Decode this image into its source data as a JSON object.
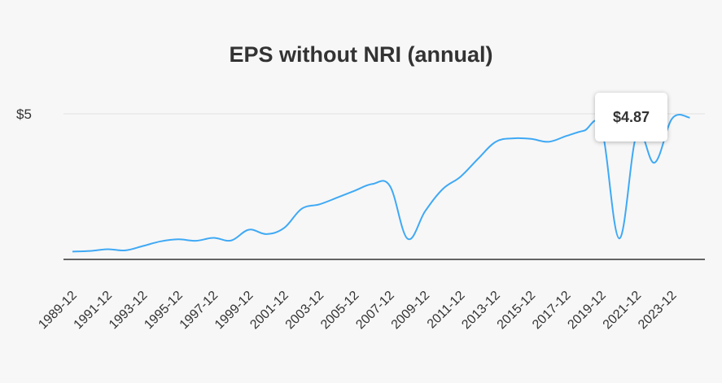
{
  "chart_data": {
    "type": "line",
    "title": "EPS without NRI (annual)",
    "xlabel": "",
    "ylabel": "",
    "y_tick_labels": [
      {
        "value": 5,
        "label": "$5"
      }
    ],
    "ylim": [
      0,
      5.1
    ],
    "x_tick_labels": [
      "1989-12",
      "1991-12",
      "1993-12",
      "1995-12",
      "1997-12",
      "1999-12",
      "2001-12",
      "2003-12",
      "2005-12",
      "2007-12",
      "2009-12",
      "2011-12",
      "2013-12",
      "2015-12",
      "2017-12",
      "2019-12",
      "2021-12",
      "2023-12"
    ],
    "grid": true,
    "legend": "none",
    "line_color": "#3fa9f5",
    "series": [
      {
        "x": [
          "1989-12",
          "1990-12",
          "1991-12",
          "1992-12",
          "1993-12",
          "1994-12",
          "1995-12",
          "1996-12",
          "1997-12",
          "1998-12",
          "1999-12",
          "2000-12",
          "2001-12",
          "2002-12",
          "2003-12",
          "2004-12",
          "2005-12",
          "2006-12",
          "2007-12",
          "2008-12",
          "2009-12",
          "2010-12",
          "2011-12",
          "2012-12",
          "2013-12",
          "2014-12",
          "2015-12",
          "2016-12",
          "2017-12",
          "2018-12",
          "2019-12",
          "2020-12",
          "2021-12",
          "2022-12",
          "2023-12",
          "2024-12"
        ],
        "values": [
          0.27,
          0.29,
          0.35,
          0.31,
          0.46,
          0.62,
          0.69,
          0.64,
          0.74,
          0.65,
          1.02,
          0.87,
          1.08,
          1.74,
          1.89,
          2.12,
          2.36,
          2.59,
          2.52,
          0.71,
          1.66,
          2.42,
          2.84,
          3.46,
          4.04,
          4.16,
          4.14,
          4.04,
          4.24,
          4.42,
          4.48,
          0.72,
          4.32,
          3.32,
          4.84,
          4.87
        ]
      }
    ],
    "tooltip": {
      "label": "$4.87",
      "category": "2024-12"
    }
  }
}
